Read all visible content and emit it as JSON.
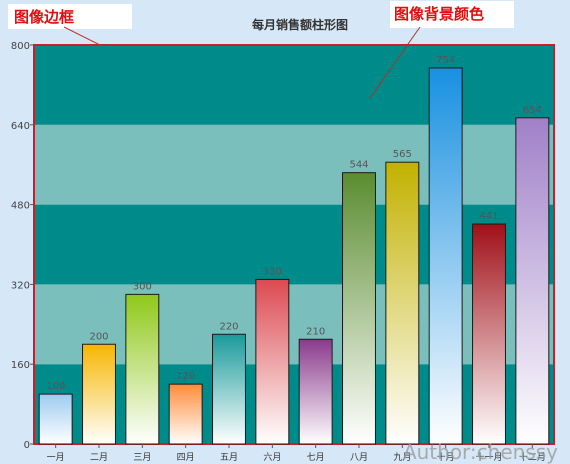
{
  "annotations": {
    "border_label": "图像边框",
    "background_label": "图像背景颜色",
    "author": "Author:chenssy"
  },
  "chart_data": {
    "type": "bar",
    "title": "每月销售额柱形图",
    "xlabel": "",
    "ylabel": "",
    "categories": [
      "一月",
      "二月",
      "三月",
      "四月",
      "五月",
      "六月",
      "七月",
      "八月",
      "九月",
      "十月",
      "十一月",
      "十二月"
    ],
    "values": [
      100,
      200,
      300,
      120,
      220,
      330,
      210,
      544,
      565,
      754,
      441,
      654
    ],
    "ylim": [
      0,
      800
    ],
    "yticks": [
      0,
      160,
      320,
      480,
      640,
      800
    ],
    "grid": true,
    "legend": "none",
    "colors": {
      "plot_band_dark": "#008b8b",
      "plot_band_light": "#7bbfbd",
      "plot_border": "#c8202a",
      "annotation_text": "#e01010",
      "bar_tops": [
        "#9ecbf0",
        "#f6b600",
        "#8fc81a",
        "#ff8c3a",
        "#1a9a9a",
        "#dc4a50",
        "#8a3a8c",
        "#5a8c30",
        "#c2b100",
        "#1890e0",
        "#a01018",
        "#a080c8"
      ]
    }
  }
}
